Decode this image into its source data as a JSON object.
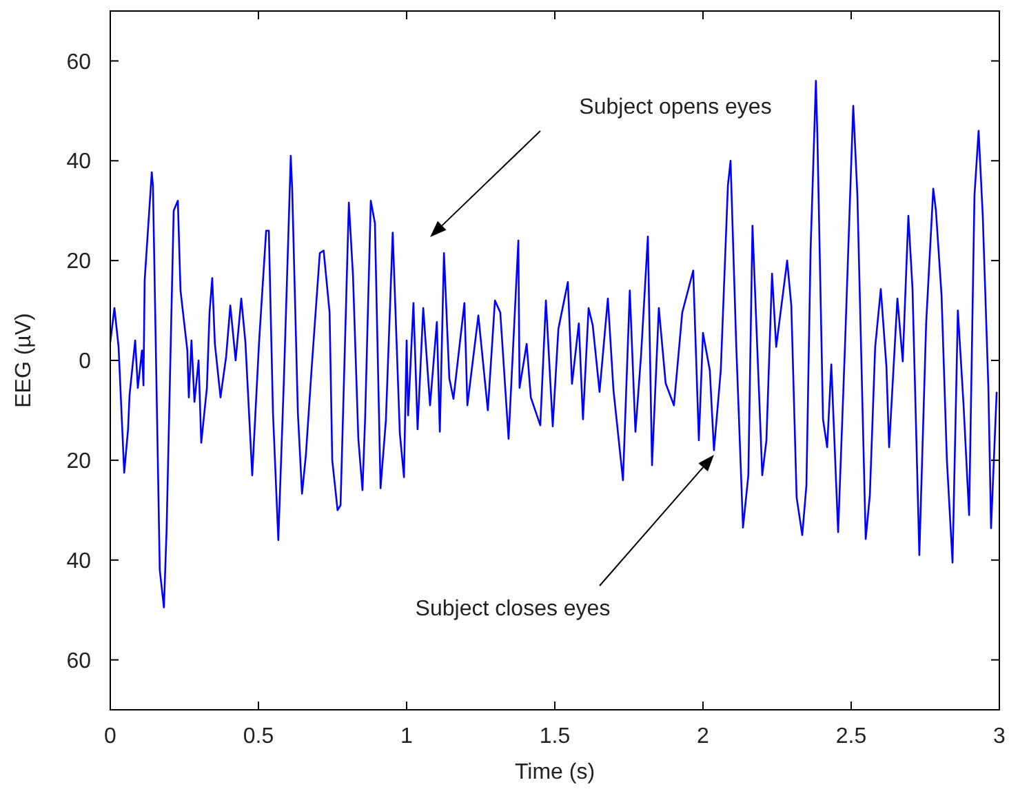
{
  "chart_data": {
    "type": "line",
    "xlabel": "Time (s)",
    "ylabel": "EEG (µV)",
    "xlim": [
      0,
      3
    ],
    "xticks": [
      0,
      0.5,
      1,
      1.5,
      2,
      2.5,
      3
    ],
    "ylim": [
      -70,
      70
    ],
    "yticks": [
      {
        "value": -60,
        "label": "60"
      },
      {
        "value": -40,
        "label": "40"
      },
      {
        "value": -20,
        "label": "20"
      },
      0,
      20,
      40,
      60
    ],
    "grid": false,
    "line_style": "solid",
    "marker": "none",
    "series": [
      {
        "color": "#0000ff",
        "x": [
          0,
          0.014,
          0.028,
          0.047,
          0.06,
          0.065,
          0.084,
          0.093,
          0.107,
          0.112,
          0.116,
          0.14,
          0.144,
          0.167,
          0.181,
          0.19,
          0.214,
          0.228,
          0.237,
          0.26,
          0.265,
          0.274,
          0.284,
          0.298,
          0.307,
          0.326,
          0.335,
          0.344,
          0.353,
          0.372,
          0.391,
          0.405,
          0.423,
          0.442,
          0.456,
          0.479,
          0.502,
          0.526,
          0.535,
          0.549,
          0.567,
          0.586,
          0.6,
          0.609,
          0.614,
          0.633,
          0.647,
          0.66,
          0.679,
          0.707,
          0.72,
          0.74,
          0.749,
          0.767,
          0.777,
          0.805,
          0.819,
          0.837,
          0.851,
          0.86,
          0.879,
          0.893,
          0.912,
          0.93,
          0.953,
          0.977,
          0.991,
          1.0,
          1.005,
          1.023,
          1.037,
          1.056,
          1.079,
          1.102,
          1.112,
          1.126,
          1.144,
          1.158,
          1.195,
          1.205,
          1.242,
          1.274,
          1.298,
          1.316,
          1.344,
          1.377,
          1.381,
          1.405,
          1.419,
          1.451,
          1.47,
          1.493,
          1.512,
          1.544,
          1.558,
          1.581,
          1.595,
          1.614,
          1.628,
          1.651,
          1.679,
          1.698,
          1.73,
          1.753,
          1.772,
          1.791,
          1.814,
          1.828,
          1.851,
          1.874,
          1.902,
          1.93,
          1.967,
          1.986,
          2.0,
          2.023,
          2.037,
          2.06,
          2.084,
          2.093,
          2.112,
          2.135,
          2.153,
          2.167,
          2.2,
          2.214,
          2.233,
          2.247,
          2.284,
          2.298,
          2.316,
          2.335,
          2.349,
          2.363,
          2.381,
          2.386,
          2.405,
          2.419,
          2.433,
          2.456,
          2.479,
          2.498,
          2.507,
          2.521,
          2.549,
          2.563,
          2.581,
          2.6,
          2.619,
          2.628,
          2.656,
          2.674,
          2.693,
          2.707,
          2.73,
          2.753,
          2.777,
          2.786,
          2.805,
          2.823,
          2.842,
          2.86,
          2.879,
          2.898,
          2.916,
          2.93,
          2.944,
          2.963,
          2.972,
          2.991
        ],
        "values": [
          3.6,
          10.5,
          2.7,
          -22.5,
          -13.8,
          -7,
          4,
          -5.5,
          2,
          -5,
          16,
          37.7,
          35,
          -42,
          -49.5,
          -34,
          30,
          32,
          14,
          2,
          -7.4,
          4,
          -8.3,
          0,
          -16.5,
          -5.5,
          9.6,
          16.5,
          3.3,
          -7.4,
          0.8,
          11,
          0,
          12.4,
          3.6,
          -23,
          3.6,
          26,
          26,
          -10.5,
          -36,
          -3.6,
          23.4,
          41,
          34,
          -10.5,
          -26.7,
          -19,
          -2,
          21.5,
          22,
          9.6,
          -20,
          -30,
          -29,
          31.6,
          17,
          -15.7,
          -26,
          -11.5,
          32,
          27.5,
          -25.6,
          -12,
          25.6,
          -14.6,
          -23.4,
          4,
          -11,
          11.5,
          -13.8,
          10.5,
          -9,
          7.7,
          -14.3,
          21.5,
          -3.6,
          -7.7,
          11.5,
          -9,
          9,
          -10,
          12,
          9.6,
          -15.7,
          24,
          -5.5,
          3.3,
          -7.4,
          -13,
          12,
          -13.2,
          6.3,
          15.7,
          -4.7,
          7.4,
          -11.8,
          10.5,
          7,
          -6.3,
          12.4,
          -6,
          -24,
          14,
          -14.3,
          1,
          24.8,
          -21,
          10.5,
          -4.6,
          -9,
          9.6,
          18,
          -16,
          5.5,
          -2,
          -18,
          -2,
          35,
          40,
          3.3,
          -33.5,
          -23,
          27,
          -23,
          -16,
          17.4,
          2.7,
          20,
          11,
          -27.5,
          -35,
          -25,
          22,
          56,
          45,
          -11.8,
          -17.4,
          -0.8,
          -34.4,
          2.7,
          35.8,
          51,
          33,
          -35.8,
          -27,
          2.7,
          14.3,
          -1.3,
          -17.4,
          12.4,
          -0.2,
          29,
          14.3,
          -39,
          7.4,
          34.4,
          30,
          13,
          -20,
          -40.5,
          10,
          -8.7,
          -31,
          33,
          46,
          29,
          -5.5,
          -33.6,
          -6.3
        ]
      }
    ],
    "annotations": [
      "Subject opens eyes",
      "Subject closes eyes"
    ]
  }
}
